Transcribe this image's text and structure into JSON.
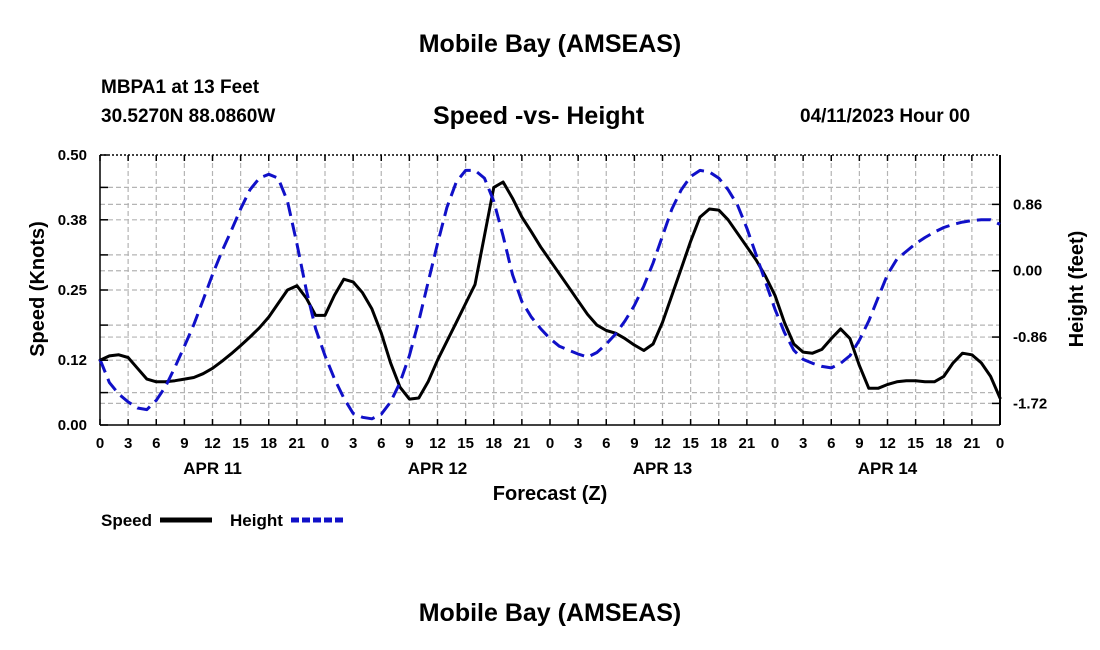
{
  "header": {
    "title": "Mobile Bay (AMSEAS)",
    "station": "MBPA1 at 13 Feet",
    "coords": "30.5270N  88.0860W",
    "chart_title": "Speed -vs- Height",
    "datetime": "04/11/2023 Hour 00",
    "footer_title": "Mobile Bay (AMSEAS)"
  },
  "legend": {
    "speed": "Speed",
    "height": "Height"
  },
  "colors": {
    "speed": "#000000",
    "height": "#1010c8",
    "grid": "#b4b4b4"
  },
  "chart_data": {
    "type": "line",
    "title": "Speed -vs- Height",
    "xlabel": "Forecast (Z)",
    "ylabel": "Speed (Knots)",
    "y2label": "Height (feet)",
    "xlim": [
      0,
      96
    ],
    "ylim": [
      0,
      0.5
    ],
    "y2lim": [
      -2.0,
      1.5
    ],
    "x_tick_labels": [
      "0",
      "3",
      "6",
      "9",
      "12",
      "15",
      "18",
      "21",
      "0",
      "3",
      "6",
      "9",
      "12",
      "15",
      "18",
      "21",
      "0",
      "3",
      "6",
      "9",
      "12",
      "15",
      "18",
      "21",
      "0",
      "3",
      "6",
      "9",
      "12",
      "15",
      "18",
      "21",
      "0"
    ],
    "date_labels": [
      "APR 11",
      "APR 12",
      "APR 13",
      "APR 14"
    ],
    "y_ticks": [
      "0.00",
      "0.12",
      "0.25",
      "0.38",
      "0.50"
    ],
    "y2_ticks": [
      "-1.72",
      "-0.86",
      "0.00",
      "0.86"
    ],
    "grid": true,
    "legend_position": "bottom-left",
    "series": [
      {
        "name": "Speed",
        "axis": "left",
        "x": [
          0,
          1,
          2,
          3,
          4,
          5,
          6,
          7,
          8,
          9,
          10,
          11,
          12,
          13,
          14,
          15,
          16,
          17,
          18,
          19,
          20,
          21,
          22,
          23,
          24,
          25,
          26,
          27,
          28,
          29,
          30,
          31,
          32,
          33,
          34,
          35,
          36,
          37,
          38,
          39,
          40,
          41,
          42,
          43,
          44,
          45,
          46,
          47,
          48,
          49,
          50,
          51,
          52,
          53,
          54,
          55,
          56,
          57,
          58,
          59,
          60,
          61,
          62,
          63,
          64,
          65,
          66,
          67,
          68,
          69,
          70,
          71,
          72,
          73,
          74,
          75,
          76,
          77,
          78,
          79,
          80,
          81,
          82,
          83,
          84,
          85,
          86,
          87,
          88,
          89,
          90,
          91,
          92,
          93,
          94,
          95,
          96
        ],
        "y": [
          0.12,
          0.128,
          0.13,
          0.125,
          0.105,
          0.085,
          0.08,
          0.08,
          0.082,
          0.085,
          0.088,
          0.095,
          0.105,
          0.118,
          0.132,
          0.147,
          0.163,
          0.18,
          0.2,
          0.225,
          0.25,
          0.258,
          0.235,
          0.203,
          0.203,
          0.24,
          0.27,
          0.265,
          0.245,
          0.215,
          0.17,
          0.115,
          0.07,
          0.048,
          0.05,
          0.08,
          0.12,
          0.155,
          0.19,
          0.225,
          0.26,
          0.35,
          0.44,
          0.45,
          0.42,
          0.385,
          0.358,
          0.33,
          0.305,
          0.28,
          0.255,
          0.23,
          0.205,
          0.185,
          0.175,
          0.17,
          0.16,
          0.148,
          0.138,
          0.15,
          0.19,
          0.24,
          0.29,
          0.34,
          0.385,
          0.4,
          0.398,
          0.38,
          0.355,
          0.33,
          0.305,
          0.275,
          0.24,
          0.19,
          0.15,
          0.135,
          0.133,
          0.14,
          0.16,
          0.178,
          0.16,
          0.11,
          0.068,
          0.068,
          0.075,
          0.08,
          0.082,
          0.082,
          0.08,
          0.08,
          0.09,
          0.115,
          0.133,
          0.13,
          0.115,
          0.09,
          0.05
        ]
      },
      {
        "name": "Height",
        "axis": "right",
        "x": [
          0,
          1,
          2,
          3,
          4,
          5,
          6,
          7,
          8,
          9,
          10,
          11,
          12,
          13,
          14,
          15,
          16,
          17,
          18,
          19,
          20,
          21,
          22,
          23,
          24,
          25,
          26,
          27,
          28,
          29,
          30,
          31,
          32,
          33,
          34,
          35,
          36,
          37,
          38,
          39,
          40,
          41,
          42,
          43,
          44,
          45,
          46,
          47,
          48,
          49,
          50,
          51,
          52,
          53,
          54,
          55,
          56,
          57,
          58,
          59,
          60,
          61,
          62,
          63,
          64,
          65,
          66,
          67,
          68,
          69,
          70,
          71,
          72,
          73,
          74,
          75,
          76,
          77,
          78,
          79,
          80,
          81,
          82,
          83,
          84,
          85,
          86,
          87,
          88,
          89,
          90,
          91,
          92,
          93,
          94,
          95,
          96
        ],
        "y": [
          -1.15,
          -1.45,
          -1.6,
          -1.7,
          -1.78,
          -1.8,
          -1.68,
          -1.5,
          -1.25,
          -0.98,
          -0.7,
          -0.38,
          -0.05,
          0.25,
          0.52,
          0.8,
          1.05,
          1.2,
          1.25,
          1.2,
          0.9,
          0.35,
          -0.25,
          -0.75,
          -1.1,
          -1.4,
          -1.65,
          -1.85,
          -1.9,
          -1.92,
          -1.86,
          -1.7,
          -1.45,
          -1.1,
          -0.65,
          -0.15,
          0.35,
          0.82,
          1.15,
          1.3,
          1.3,
          1.2,
          0.9,
          0.45,
          -0.05,
          -0.4,
          -0.6,
          -0.75,
          -0.88,
          -0.98,
          -1.03,
          -1.08,
          -1.12,
          -1.06,
          -0.95,
          -0.82,
          -0.65,
          -0.45,
          -0.2,
          0.1,
          0.45,
          0.8,
          1.05,
          1.22,
          1.3,
          1.28,
          1.2,
          1.05,
          0.85,
          0.55,
          0.2,
          -0.15,
          -0.5,
          -0.8,
          -1.03,
          -1.15,
          -1.2,
          -1.24,
          -1.26,
          -1.2,
          -1.1,
          -0.9,
          -0.65,
          -0.35,
          -0.05,
          0.15,
          0.25,
          0.35,
          0.43,
          0.5,
          0.56,
          0.6,
          0.63,
          0.65,
          0.66,
          0.66,
          0.6
        ]
      }
    ]
  }
}
